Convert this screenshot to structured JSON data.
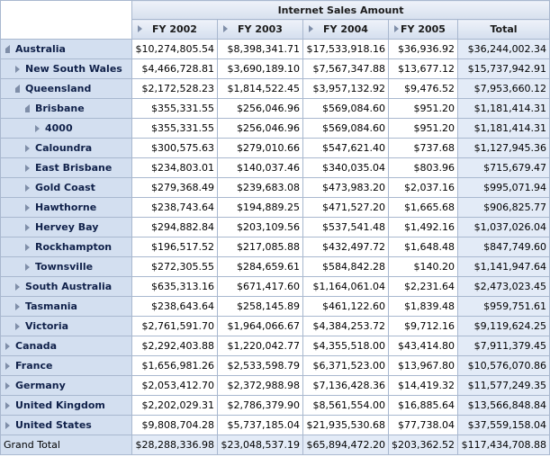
{
  "measure_title": "Internet Sales Amount",
  "columns": [
    "FY 2002",
    "FY 2003",
    "FY 2004",
    "FY 2005",
    "Total"
  ],
  "rows": [
    {
      "label": "Australia",
      "level": 0,
      "expander": "expanded",
      "values": [
        "$10,274,805.54",
        "$8,398,341.71",
        "$17,533,918.16",
        "$36,936.92",
        "$36,244,002.34"
      ]
    },
    {
      "label": "New South Wales",
      "level": 1,
      "expander": "collapsed",
      "values": [
        "$4,466,728.81",
        "$3,690,189.10",
        "$7,567,347.88",
        "$13,677.12",
        "$15,737,942.91"
      ]
    },
    {
      "label": "Queensland",
      "level": 1,
      "expander": "expanded",
      "values": [
        "$2,172,528.23",
        "$1,814,522.45",
        "$3,957,132.92",
        "$9,476.52",
        "$7,953,660.12"
      ]
    },
    {
      "label": "Brisbane",
      "level": 2,
      "expander": "expanded",
      "values": [
        "$355,331.55",
        "$256,046.96",
        "$569,084.60",
        "$951.20",
        "$1,181,414.31"
      ]
    },
    {
      "label": "4000",
      "level": 3,
      "expander": "collapsed",
      "values": [
        "$355,331.55",
        "$256,046.96",
        "$569,084.60",
        "$951.20",
        "$1,181,414.31"
      ]
    },
    {
      "label": "Caloundra",
      "level": 2,
      "expander": "collapsed",
      "values": [
        "$300,575.63",
        "$279,010.66",
        "$547,621.40",
        "$737.68",
        "$1,127,945.36"
      ]
    },
    {
      "label": "East Brisbane",
      "level": 2,
      "expander": "collapsed",
      "values": [
        "$234,803.01",
        "$140,037.46",
        "$340,035.04",
        "$803.96",
        "$715,679.47"
      ]
    },
    {
      "label": "Gold Coast",
      "level": 2,
      "expander": "collapsed",
      "values": [
        "$279,368.49",
        "$239,683.08",
        "$473,983.20",
        "$2,037.16",
        "$995,071.94"
      ]
    },
    {
      "label": "Hawthorne",
      "level": 2,
      "expander": "collapsed",
      "values": [
        "$238,743.64",
        "$194,889.25",
        "$471,527.20",
        "$1,665.68",
        "$906,825.77"
      ]
    },
    {
      "label": "Hervey Bay",
      "level": 2,
      "expander": "collapsed",
      "values": [
        "$294,882.84",
        "$203,109.56",
        "$537,541.48",
        "$1,492.16",
        "$1,037,026.04"
      ]
    },
    {
      "label": "Rockhampton",
      "level": 2,
      "expander": "collapsed",
      "values": [
        "$196,517.52",
        "$217,085.88",
        "$432,497.72",
        "$1,648.48",
        "$847,749.60"
      ]
    },
    {
      "label": "Townsville",
      "level": 2,
      "expander": "collapsed",
      "values": [
        "$272,305.55",
        "$284,659.61",
        "$584,842.28",
        "$140.20",
        "$1,141,947.64"
      ]
    },
    {
      "label": "South Australia",
      "level": 1,
      "expander": "collapsed",
      "values": [
        "$635,313.16",
        "$671,417.60",
        "$1,164,061.04",
        "$2,231.64",
        "$2,473,023.45"
      ]
    },
    {
      "label": "Tasmania",
      "level": 1,
      "expander": "collapsed",
      "values": [
        "$238,643.64",
        "$258,145.89",
        "$461,122.60",
        "$1,839.48",
        "$959,751.61"
      ]
    },
    {
      "label": "Victoria",
      "level": 1,
      "expander": "collapsed",
      "values": [
        "$2,761,591.70",
        "$1,964,066.67",
        "$4,384,253.72",
        "$9,712.16",
        "$9,119,624.25"
      ]
    },
    {
      "label": "Canada",
      "level": 0,
      "expander": "collapsed",
      "values": [
        "$2,292,403.88",
        "$1,220,042.77",
        "$4,355,518.00",
        "$43,414.80",
        "$7,911,379.45"
      ]
    },
    {
      "label": "France",
      "level": 0,
      "expander": "collapsed",
      "values": [
        "$1,656,981.26",
        "$2,533,598.79",
        "$6,371,523.00",
        "$13,967.80",
        "$10,576,070.86"
      ]
    },
    {
      "label": "Germany",
      "level": 0,
      "expander": "collapsed",
      "values": [
        "$2,053,412.70",
        "$2,372,988.98",
        "$7,136,428.36",
        "$14,419.32",
        "$11,577,249.35"
      ]
    },
    {
      "label": "United Kingdom",
      "level": 0,
      "expander": "collapsed",
      "values": [
        "$2,202,029.31",
        "$2,786,379.90",
        "$8,561,554.00",
        "$16,885.64",
        "$13,566,848.84"
      ]
    },
    {
      "label": "United States",
      "level": 0,
      "expander": "collapsed",
      "values": [
        "$9,808,704.28",
        "$5,737,185.04",
        "$21,935,530.68",
        "$77,738.04",
        "$37,559,158.04"
      ]
    }
  ],
  "grand_total": {
    "label": "Grand Total",
    "values": [
      "$28,288,336.98",
      "$23,048,537.19",
      "$65,894,472.20",
      "$203,362.52",
      "$117,434,708.88"
    ]
  },
  "colors": {
    "header_bg": "#d4deee",
    "row_header_bg": "#d3dff0",
    "total_bg": "#e3ebf7",
    "border": "#a9b8cf",
    "expander": "#7f8ea8"
  }
}
